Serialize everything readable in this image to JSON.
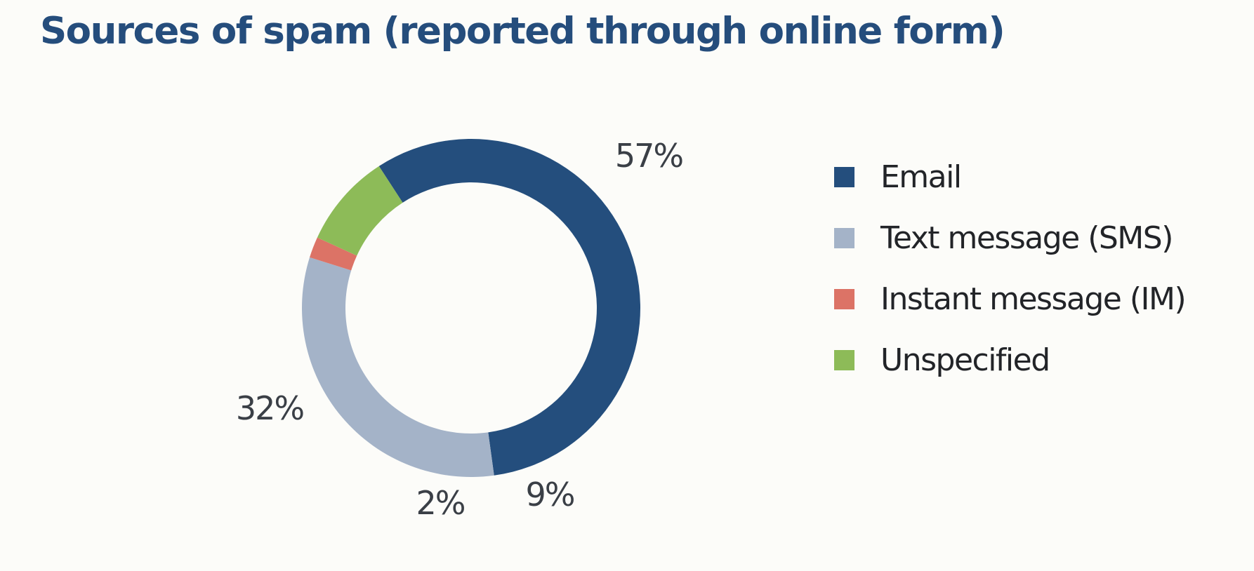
{
  "chart_data": {
    "type": "pie",
    "title": "Sources of spam (reported through online form)",
    "donut": true,
    "series": [
      {
        "name": "Email",
        "value": 57,
        "label": "57%",
        "color": "#244e7d"
      },
      {
        "name": "Text message (SMS)",
        "value": 32,
        "label": "32%",
        "color": "#a4b3c8"
      },
      {
        "name": "Instant message (IM)",
        "value": 2,
        "label": "2%",
        "color": "#dc7366"
      },
      {
        "name": "Unspecified",
        "value": 9,
        "label": "9%",
        "color": "#8dbb58"
      }
    ],
    "start_angle_deg": -33,
    "direction": "clockwise",
    "legend_position": "right"
  }
}
